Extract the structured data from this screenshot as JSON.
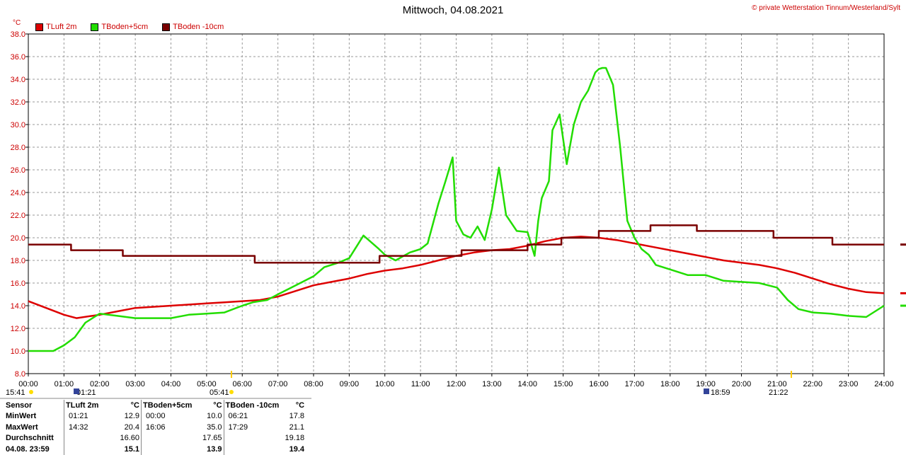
{
  "title": "Mittwoch, 04.08.2021",
  "copyright": "© private Wetterstation Tinnum/Westerland/Sylt",
  "unit": "°C",
  "chart_data": {
    "type": "line",
    "ylim": [
      8.0,
      38.0
    ],
    "xlim": [
      0,
      24
    ],
    "y_ticks": [
      "8.0",
      "10.0",
      "12.0",
      "14.0",
      "16.0",
      "18.0",
      "20.0",
      "22.0",
      "24.0",
      "26.0",
      "28.0",
      "30.0",
      "32.0",
      "34.0",
      "36.0",
      "38.0"
    ],
    "x_ticks": [
      "00:00",
      "01:00",
      "02:00",
      "03:00",
      "04:00",
      "05:00",
      "06:00",
      "07:00",
      "08:00",
      "09:00",
      "10:00",
      "11:00",
      "12:00",
      "13:00",
      "14:00",
      "15:00",
      "16:00",
      "17:00",
      "18:00",
      "19:00",
      "20:00",
      "21:00",
      "22:00",
      "23:00",
      "24:00"
    ],
    "grid": true,
    "legend_position": "top-left",
    "series": [
      {
        "name": "TLuft 2m",
        "color": "#dd0000",
        "x": [
          0,
          0.5,
          1,
          1.35,
          2,
          2.5,
          3,
          4,
          5,
          5.5,
          6,
          6.5,
          7,
          7.5,
          8,
          8.5,
          9,
          9.5,
          10,
          10.5,
          11,
          11.5,
          12,
          12.5,
          13,
          13.5,
          14,
          14.5,
          15,
          15.5,
          16,
          16.5,
          17,
          17.5,
          18,
          18.5,
          19,
          19.5,
          20,
          20.5,
          21,
          21.5,
          22,
          22.5,
          23,
          23.5,
          24
        ],
        "y": [
          14.4,
          13.8,
          13.2,
          12.9,
          13.2,
          13.5,
          13.8,
          14.0,
          14.2,
          14.3,
          14.4,
          14.5,
          14.8,
          15.3,
          15.8,
          16.1,
          16.4,
          16.8,
          17.1,
          17.3,
          17.6,
          18.0,
          18.4,
          18.7,
          18.9,
          19.0,
          19.3,
          19.7,
          20.0,
          20.1,
          20.0,
          19.8,
          19.5,
          19.2,
          18.9,
          18.6,
          18.3,
          18.0,
          17.8,
          17.6,
          17.3,
          16.9,
          16.4,
          15.9,
          15.5,
          15.2,
          15.1
        ]
      },
      {
        "name": "TBoden+5cm",
        "color": "#22dd00",
        "x": [
          0,
          0.7,
          1,
          1.3,
          1.6,
          2,
          2.5,
          3,
          3.5,
          4,
          4.5,
          5,
          5.5,
          6,
          6.3,
          6.7,
          7,
          7.5,
          8,
          8.3,
          8.7,
          9,
          9.4,
          9.8,
          10,
          10.3,
          10.7,
          11,
          11.2,
          11.5,
          11.7,
          11.9,
          12,
          12.2,
          12.4,
          12.6,
          12.8,
          13,
          13.2,
          13.4,
          13.7,
          14,
          14.2,
          14.3,
          14.4,
          14.6,
          14.7,
          14.9,
          15.1,
          15.3,
          15.5,
          15.7,
          15.9,
          16,
          16.1,
          16.2,
          16.4,
          16.6,
          16.8,
          17,
          17.2,
          17.4,
          17.6,
          18,
          18.5,
          19,
          19.5,
          20,
          20.5,
          21,
          21.3,
          21.6,
          22,
          22.5,
          23,
          23.5,
          24
        ],
        "y": [
          10.0,
          10.0,
          10.5,
          11.2,
          12.5,
          13.3,
          13.1,
          12.9,
          12.9,
          12.9,
          13.2,
          13.3,
          13.4,
          14.0,
          14.3,
          14.5,
          15.0,
          15.8,
          16.6,
          17.4,
          17.8,
          18.2,
          20.2,
          19.1,
          18.5,
          18.0,
          18.7,
          19.0,
          19.5,
          23.0,
          25.0,
          27.1,
          21.5,
          20.3,
          20.0,
          21.0,
          19.8,
          22.5,
          26.2,
          22.0,
          20.6,
          20.5,
          18.4,
          21.5,
          23.5,
          25.0,
          29.5,
          30.9,
          26.5,
          30.0,
          32.0,
          33.0,
          34.6,
          34.9,
          35.0,
          35.0,
          33.5,
          28.0,
          21.5,
          20.0,
          19.0,
          18.5,
          17.6,
          17.2,
          16.7,
          16.7,
          16.2,
          16.1,
          16.0,
          15.6,
          14.5,
          13.7,
          13.4,
          13.3,
          13.1,
          13.0,
          14.0
        ]
      },
      {
        "name": "TBoden -10cm",
        "color": "#7a0000",
        "x": [
          0,
          1.2,
          1.2,
          2.65,
          2.65,
          6.35,
          6.35,
          9.85,
          9.85,
          12.15,
          12.15,
          14.0,
          14.0,
          14.95,
          14.95,
          16.0,
          16.0,
          17.45,
          17.45,
          18.75,
          18.75,
          20.9,
          20.9,
          22.55,
          22.55,
          24
        ],
        "y": [
          19.4,
          19.4,
          18.9,
          18.9,
          18.4,
          18.4,
          17.8,
          17.8,
          18.4,
          18.4,
          18.9,
          18.9,
          19.4,
          19.4,
          20.0,
          20.0,
          20.6,
          20.6,
          21.1,
          21.1,
          20.6,
          20.6,
          20.0,
          20.0,
          19.4,
          19.4
        ]
      }
    ]
  },
  "stats": {
    "headers": [
      "Sensor",
      "TLuft 2m",
      "°C",
      "TBoden+5cm",
      "°C",
      "TBoden -10cm",
      "°C"
    ],
    "rows": [
      [
        "MinWert",
        "01:21",
        "12.9",
        "00:00",
        "10.0",
        "06:21",
        "17.8"
      ],
      [
        "MaxWert",
        "14:32",
        "20.4",
        "16:06",
        "35.0",
        "17:29",
        "21.1"
      ],
      [
        "Durchschnitt",
        "",
        "16.60",
        "",
        "17.65",
        "",
        "19.18"
      ],
      [
        "04.08. 23:59",
        "",
        "15.1",
        "",
        "13.9",
        "",
        "19.4"
      ]
    ]
  },
  "sun_markers": {
    "sunrise_left": "15:41",
    "minimum_marker": "01:21",
    "sunrise": "05:41",
    "sunset_marker": "18:59",
    "sunset": "21:22"
  }
}
